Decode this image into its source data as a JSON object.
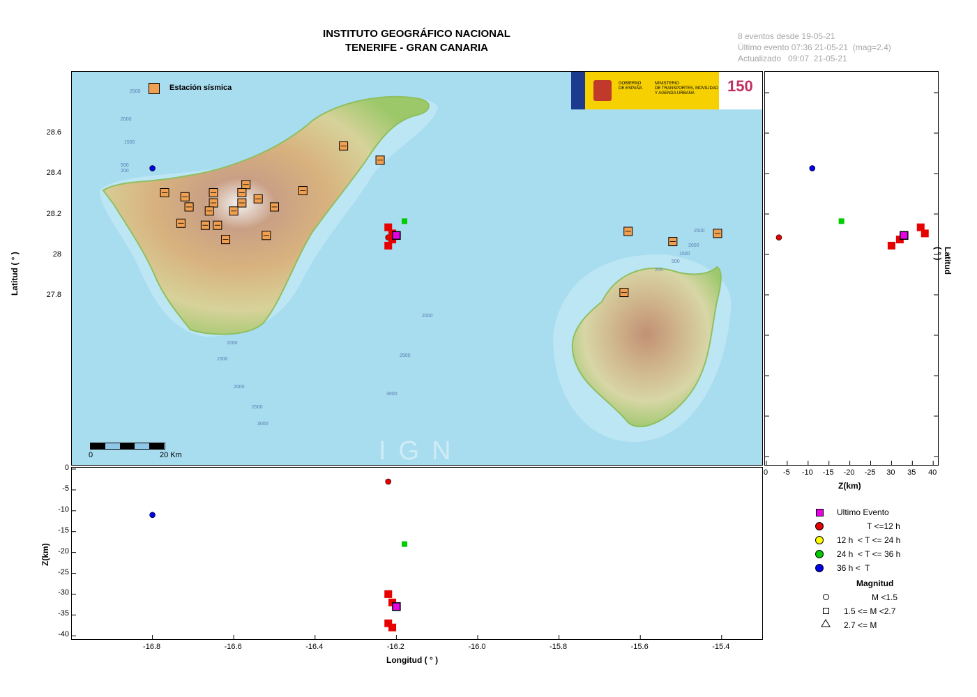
{
  "header": {
    "title_line1": "INSTITUTO GEOGRÁFICO NACIONAL",
    "title_line2": "TENERIFE - GRAN CANARIA",
    "info_line1": "8 eventos desde 19-05-21",
    "info_line2": "Último evento 07:36 21-05-21  (mag=2.4)",
    "info_line3": "Actualizado   09:07  21-05-21"
  },
  "map": {
    "station_legend": "Estación sísmica",
    "scale_start": "0",
    "scale_end": "20 Km",
    "watermark": "IGN",
    "ministry_text_1": "GOBIERNO",
    "ministry_text_2": "DE ESPAÑA",
    "ministry_text_3": "MINISTERIO",
    "ministry_text_4": "DE TRANSPORTES, MOVILIDAD",
    "ministry_text_5": "Y AGENDA URBANA",
    "badge": "150",
    "depth_labels": [
      "2500",
      "2000",
      "1500",
      "500",
      "200",
      "1000",
      "1500",
      "2000",
      "2500",
      "3000",
      "2000",
      "2500",
      "3000",
      "2500",
      "2000",
      "1500",
      "500",
      "200"
    ]
  },
  "axes": {
    "lat_label": "Latitud ( ° )",
    "lon_label": "Longitud ( ° )",
    "z_label": "Z(km)",
    "lat_ticks": [
      "28.6",
      "28.4",
      "28.2",
      "28",
      "27.8"
    ],
    "lon_ticks": [
      "-16.8",
      "-16.6",
      "-16.4",
      "-16.2",
      "-16.0",
      "-15.8",
      "-15.6",
      "-15.4"
    ],
    "z_ticks_bottom": [
      "0",
      "-5",
      "-10",
      "-15",
      "-20",
      "-25",
      "-30",
      "-35",
      "-40"
    ],
    "z_ticks_right": [
      "0",
      "-5",
      "-10",
      "-15",
      "-20",
      "-25",
      "30",
      "35",
      "40"
    ]
  },
  "legend": {
    "ultimo": "Ultimo Evento",
    "t12": "T <=12 h",
    "t24": "12 h  < T <= 24 h",
    "t36": "24 h  < T <= 36 h",
    "tinf": "36 h <  T",
    "magnitud": "Magnitud",
    "m1": "M <1.5",
    "m2": "1.5 <= M <2.7",
    "m3": "2.7 <= M",
    "colors": {
      "ultimo": "#e600e6",
      "t12": "#e60000",
      "t24": "#ffff00",
      "t36": "#00cc00",
      "tinf": "#0000e6"
    }
  },
  "chart_data": {
    "type": "scatter",
    "lon_range": [
      -17.0,
      -15.3
    ],
    "lat_range": [
      27.7,
      28.66
    ],
    "z_range": [
      0,
      -40
    ],
    "events": [
      {
        "lon": -16.8,
        "lat": 28.43,
        "z": -11,
        "age": "36h+",
        "mag_class": "M<1.5"
      },
      {
        "lon": -16.22,
        "lat": 28.09,
        "z": -3,
        "age": "<=12h",
        "mag_class": "M<1.5"
      },
      {
        "lon": -16.18,
        "lat": 28.17,
        "z": -18,
        "age": "24-36h",
        "mag_class": "1.5<=M<2.7"
      },
      {
        "lon": -16.22,
        "lat": 28.14,
        "z": -37,
        "age": "<=12h",
        "mag_class": "1.5<=M<2.7"
      },
      {
        "lon": -16.21,
        "lat": 28.11,
        "z": -38,
        "age": "<=12h",
        "mag_class": "1.5<=M<2.7"
      },
      {
        "lon": -16.21,
        "lat": 28.08,
        "z": -32,
        "age": "<=12h",
        "mag_class": "1.5<=M<2.7"
      },
      {
        "lon": -16.22,
        "lat": 28.05,
        "z": -30,
        "age": "<=12h",
        "mag_class": "1.5<=M<2.7"
      },
      {
        "lon": -16.2,
        "lat": 28.1,
        "z": -33,
        "age": "last",
        "mag_class": "1.5<=M<2.7"
      }
    ],
    "stations": [
      {
        "lon": -16.33,
        "lat": 28.54
      },
      {
        "lon": -16.24,
        "lat": 28.47
      },
      {
        "lon": -16.43,
        "lat": 28.32
      },
      {
        "lon": -16.57,
        "lat": 28.35
      },
      {
        "lon": -16.58,
        "lat": 28.31
      },
      {
        "lon": -16.54,
        "lat": 28.28
      },
      {
        "lon": -16.5,
        "lat": 28.24
      },
      {
        "lon": -16.58,
        "lat": 28.26
      },
      {
        "lon": -16.6,
        "lat": 28.22
      },
      {
        "lon": -16.65,
        "lat": 28.31
      },
      {
        "lon": -16.65,
        "lat": 28.26
      },
      {
        "lon": -16.66,
        "lat": 28.22
      },
      {
        "lon": -16.72,
        "lat": 28.29
      },
      {
        "lon": -16.71,
        "lat": 28.24
      },
      {
        "lon": -16.77,
        "lat": 28.31
      },
      {
        "lon": -16.73,
        "lat": 28.16
      },
      {
        "lon": -16.67,
        "lat": 28.15
      },
      {
        "lon": -16.64,
        "lat": 28.15
      },
      {
        "lon": -16.62,
        "lat": 28.08
      },
      {
        "lon": -16.52,
        "lat": 28.1
      },
      {
        "lon": -15.63,
        "lat": 28.12
      },
      {
        "lon": -15.52,
        "lat": 28.07
      },
      {
        "lon": -15.41,
        "lat": 28.11
      },
      {
        "lon": -15.64,
        "lat": 27.82
      }
    ]
  }
}
